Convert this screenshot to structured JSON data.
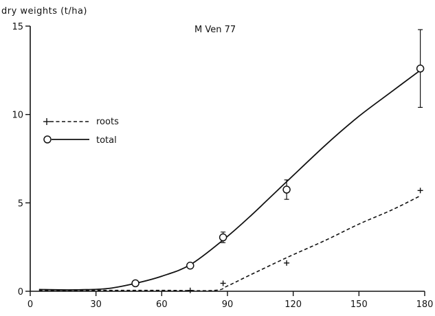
{
  "chart_data": {
    "type": "line",
    "title": "M Ven 77",
    "ylabel": "dry weights (t/ha)",
    "xlabel": "",
    "xlim": [
      0,
      180
    ],
    "ylim": [
      0,
      15
    ],
    "x_ticks": [
      "0",
      "30",
      "60",
      "90",
      "120",
      "150",
      "180"
    ],
    "y_ticks": [
      "0",
      "5",
      "10",
      "15"
    ],
    "legend_position": "left",
    "series": [
      {
        "name": "roots",
        "marker": "plus",
        "line": "dashed",
        "points": [
          {
            "x": 73,
            "y": 0.05
          },
          {
            "x": 88,
            "y": 0.45
          },
          {
            "x": 117,
            "y": 1.6
          },
          {
            "x": 178,
            "y": 5.7
          }
        ],
        "curve": [
          {
            "x": 4,
            "y": 0.05
          },
          {
            "x": 60,
            "y": 0.05
          },
          {
            "x": 84,
            "y": 0.05
          },
          {
            "x": 90,
            "y": 0.3
          },
          {
            "x": 100,
            "y": 0.9
          },
          {
            "x": 117,
            "y": 1.9
          },
          {
            "x": 135,
            "y": 2.9
          },
          {
            "x": 150,
            "y": 3.8
          },
          {
            "x": 165,
            "y": 4.6
          },
          {
            "x": 178,
            "y": 5.4
          }
        ]
      },
      {
        "name": "total",
        "marker": "circle",
        "line": "solid",
        "points": [
          {
            "x": 48,
            "y": 0.45
          },
          {
            "x": 73,
            "y": 1.45
          },
          {
            "x": 88,
            "y": 3.05,
            "err": 0.3
          },
          {
            "x": 117,
            "y": 5.75,
            "err": 0.55
          },
          {
            "x": 178,
            "y": 12.6,
            "err": 2.2
          }
        ],
        "curve": [
          {
            "x": 4,
            "y": 0.1
          },
          {
            "x": 20,
            "y": 0.08
          },
          {
            "x": 35,
            "y": 0.15
          },
          {
            "x": 48,
            "y": 0.45
          },
          {
            "x": 60,
            "y": 0.85
          },
          {
            "x": 73,
            "y": 1.5
          },
          {
            "x": 88,
            "y": 2.9
          },
          {
            "x": 100,
            "y": 4.2
          },
          {
            "x": 117,
            "y": 6.2
          },
          {
            "x": 135,
            "y": 8.3
          },
          {
            "x": 150,
            "y": 9.9
          },
          {
            "x": 165,
            "y": 11.3
          },
          {
            "x": 178,
            "y": 12.5
          }
        ]
      }
    ]
  }
}
